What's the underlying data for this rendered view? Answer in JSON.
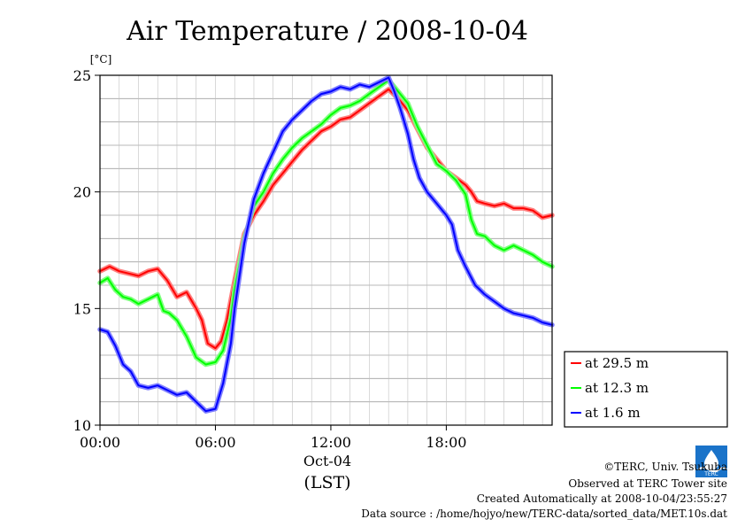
{
  "chart_data": {
    "type": "line",
    "title": "Air Temperature / 2008-10-04",
    "ylabel": "[°C]",
    "xlabel": "(LST)",
    "date_label": "Oct-04",
    "xlim": [
      0,
      23.5
    ],
    "ylim": [
      10,
      25
    ],
    "x_ticks": [
      {
        "value": 0,
        "label": "00:00"
      },
      {
        "value": 6,
        "label": "06:00"
      },
      {
        "value": 12,
        "label": "12:00"
      },
      {
        "value": 18,
        "label": "18:00"
      }
    ],
    "y_ticks": [
      {
        "value": 10,
        "label": "10"
      },
      {
        "value": 15,
        "label": "15"
      },
      {
        "value": 20,
        "label": "20"
      },
      {
        "value": 25,
        "label": "25"
      }
    ],
    "grid": true,
    "legend_position": "right",
    "series": [
      {
        "name": "at 29.5 m",
        "color": "#ff0000",
        "band": "#ff8080",
        "points": [
          [
            0,
            16.6
          ],
          [
            0.5,
            16.8
          ],
          [
            1,
            16.6
          ],
          [
            1.5,
            16.5
          ],
          [
            2,
            16.4
          ],
          [
            2.5,
            16.6
          ],
          [
            3,
            16.7
          ],
          [
            3.5,
            16.2
          ],
          [
            4,
            15.5
          ],
          [
            4.5,
            15.7
          ],
          [
            5,
            15.0
          ],
          [
            5.3,
            14.5
          ],
          [
            5.6,
            13.5
          ],
          [
            6,
            13.3
          ],
          [
            6.3,
            13.6
          ],
          [
            6.6,
            14.5
          ],
          [
            7,
            16.2
          ],
          [
            7.5,
            18.2
          ],
          [
            8,
            19.0
          ],
          [
            8.5,
            19.6
          ],
          [
            9,
            20.3
          ],
          [
            9.5,
            20.8
          ],
          [
            10,
            21.3
          ],
          [
            10.5,
            21.8
          ],
          [
            11,
            22.2
          ],
          [
            11.5,
            22.6
          ],
          [
            12,
            22.8
          ],
          [
            12.5,
            23.1
          ],
          [
            13,
            23.2
          ],
          [
            13.5,
            23.5
          ],
          [
            14,
            23.8
          ],
          [
            14.5,
            24.1
          ],
          [
            15,
            24.4
          ],
          [
            15.5,
            24.0
          ],
          [
            16,
            23.5
          ],
          [
            16.5,
            22.7
          ],
          [
            17,
            21.9
          ],
          [
            17.5,
            21.4
          ],
          [
            18,
            20.9
          ],
          [
            18.5,
            20.6
          ],
          [
            19,
            20.3
          ],
          [
            19.3,
            20.0
          ],
          [
            19.6,
            19.6
          ],
          [
            20,
            19.5
          ],
          [
            20.5,
            19.4
          ],
          [
            21,
            19.5
          ],
          [
            21.5,
            19.3
          ],
          [
            22,
            19.3
          ],
          [
            22.5,
            19.2
          ],
          [
            23,
            18.9
          ],
          [
            23.5,
            19.0
          ]
        ]
      },
      {
        "name": "at 12.3 m",
        "color": "#00ff00",
        "band": "#80ff80",
        "points": [
          [
            0,
            16.1
          ],
          [
            0.4,
            16.3
          ],
          [
            0.8,
            15.8
          ],
          [
            1.2,
            15.5
          ],
          [
            1.6,
            15.4
          ],
          [
            2,
            15.2
          ],
          [
            2.5,
            15.4
          ],
          [
            3,
            15.6
          ],
          [
            3.3,
            14.9
          ],
          [
            3.6,
            14.8
          ],
          [
            4,
            14.5
          ],
          [
            4.5,
            13.8
          ],
          [
            5,
            12.9
          ],
          [
            5.5,
            12.6
          ],
          [
            6,
            12.7
          ],
          [
            6.4,
            13.2
          ],
          [
            6.8,
            14.6
          ],
          [
            7,
            15.8
          ],
          [
            7.5,
            18.0
          ],
          [
            8,
            19.4
          ],
          [
            8.5,
            20.0
          ],
          [
            9,
            20.8
          ],
          [
            9.5,
            21.4
          ],
          [
            10,
            21.9
          ],
          [
            10.5,
            22.3
          ],
          [
            11,
            22.6
          ],
          [
            11.5,
            22.9
          ],
          [
            12,
            23.3
          ],
          [
            12.5,
            23.6
          ],
          [
            13,
            23.7
          ],
          [
            13.5,
            23.9
          ],
          [
            14,
            24.2
          ],
          [
            14.5,
            24.5
          ],
          [
            15,
            24.8
          ],
          [
            15.5,
            24.3
          ],
          [
            16,
            23.8
          ],
          [
            16.5,
            22.8
          ],
          [
            17,
            22.0
          ],
          [
            17.5,
            21.2
          ],
          [
            18,
            20.9
          ],
          [
            18.5,
            20.5
          ],
          [
            19,
            19.9
          ],
          [
            19.3,
            18.8
          ],
          [
            19.6,
            18.2
          ],
          [
            20,
            18.1
          ],
          [
            20.5,
            17.7
          ],
          [
            21,
            17.5
          ],
          [
            21.5,
            17.7
          ],
          [
            22,
            17.5
          ],
          [
            22.5,
            17.3
          ],
          [
            23,
            17.0
          ],
          [
            23.5,
            16.8
          ]
        ]
      },
      {
        "name": "at 1.6 m",
        "color": "#0000ff",
        "band": "#8080ff",
        "points": [
          [
            0,
            14.1
          ],
          [
            0.4,
            14.0
          ],
          [
            0.8,
            13.4
          ],
          [
            1.2,
            12.6
          ],
          [
            1.6,
            12.3
          ],
          [
            2,
            11.7
          ],
          [
            2.5,
            11.6
          ],
          [
            3,
            11.7
          ],
          [
            3.5,
            11.5
          ],
          [
            4,
            11.3
          ],
          [
            4.5,
            11.4
          ],
          [
            5,
            11.0
          ],
          [
            5.5,
            10.6
          ],
          [
            6,
            10.7
          ],
          [
            6.4,
            11.8
          ],
          [
            6.8,
            13.5
          ],
          [
            7,
            15.0
          ],
          [
            7.5,
            17.8
          ],
          [
            8,
            19.7
          ],
          [
            8.5,
            20.8
          ],
          [
            9,
            21.7
          ],
          [
            9.5,
            22.6
          ],
          [
            10,
            23.1
          ],
          [
            10.5,
            23.5
          ],
          [
            11,
            23.9
          ],
          [
            11.5,
            24.2
          ],
          [
            12,
            24.3
          ],
          [
            12.5,
            24.5
          ],
          [
            13,
            24.4
          ],
          [
            13.5,
            24.6
          ],
          [
            14,
            24.5
          ],
          [
            14.5,
            24.7
          ],
          [
            15,
            24.9
          ],
          [
            15.3,
            24.3
          ],
          [
            15.6,
            23.6
          ],
          [
            16,
            22.5
          ],
          [
            16.3,
            21.4
          ],
          [
            16.6,
            20.6
          ],
          [
            17,
            20.0
          ],
          [
            17.5,
            19.5
          ],
          [
            18,
            19.0
          ],
          [
            18.3,
            18.6
          ],
          [
            18.6,
            17.5
          ],
          [
            19,
            16.8
          ],
          [
            19.5,
            16.0
          ],
          [
            20,
            15.6
          ],
          [
            20.5,
            15.3
          ],
          [
            21,
            15.0
          ],
          [
            21.5,
            14.8
          ],
          [
            22,
            14.7
          ],
          [
            22.5,
            14.6
          ],
          [
            23,
            14.4
          ],
          [
            23.5,
            14.3
          ]
        ]
      }
    ]
  },
  "credits": {
    "copyright": "©TERC, Univ. Tsukuba",
    "observed": "Observed at TERC Tower site",
    "created": "Created Automatically at 2008-10-04/23:55:27",
    "source": "Data source : /home/hojyo/new/TERC-data/sorted_data/MET.10s.dat",
    "logo_text": "TERC"
  }
}
